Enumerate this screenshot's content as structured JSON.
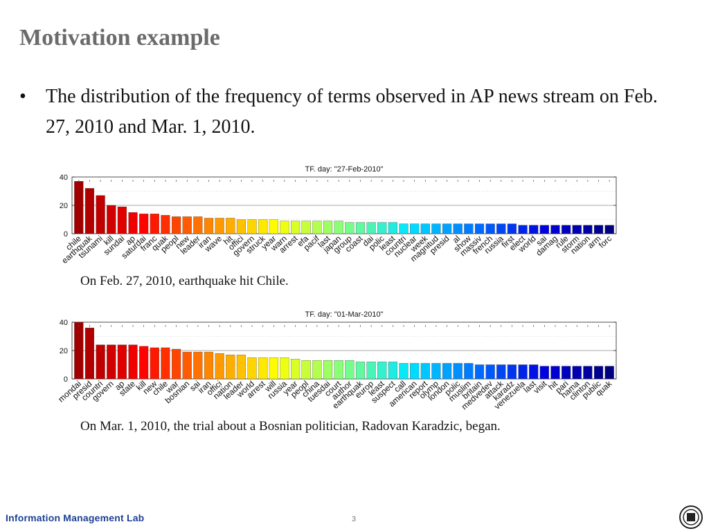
{
  "slide": {
    "title": "Motivation example",
    "bullet": "The distribution of the frequency of terms observed in AP news stream on Feb. 27, 2010 and Mar. 1, 2010.",
    "captions": [
      "On Feb. 27, 2010, earthquake hit Chile.",
      "On Mar. 1, 2010, the trial about a Bosnian politician, Radovan Karadzic, began."
    ],
    "footer": {
      "lab_name": "Information Management Lab",
      "page_number": "3",
      "logo_icon": "university-seal-icon"
    }
  },
  "chart_data": [
    {
      "type": "bar",
      "title": "TF. day: \"27-Feb-2010\"",
      "ylim": [
        0,
        40
      ],
      "yticks": [
        0,
        20,
        40
      ],
      "grid": true,
      "categories": [
        "chile",
        "earthquak",
        "tsunami",
        "kill",
        "sundai",
        "ap",
        "saturdai",
        "franc",
        "quak",
        "peopl",
        "new",
        "leader",
        "iran",
        "wave",
        "hit",
        "offici",
        "govern",
        "struck",
        "year",
        "warn",
        "arrest",
        "efa",
        "pacif",
        "last",
        "japan",
        "group",
        "coast",
        "dai",
        "polic",
        "least",
        "countri",
        "nuclear",
        "week",
        "magnitud",
        "presid",
        "al",
        "show",
        "massiv",
        "french",
        "russia",
        "first",
        "elect",
        "world",
        "sai",
        "damag",
        "rule",
        "storm",
        "nation",
        "arm",
        "forc"
      ],
      "values": [
        37,
        32,
        27,
        20,
        19,
        15,
        14,
        14,
        13,
        12,
        12,
        12,
        11,
        11,
        11,
        10,
        10,
        10,
        10,
        9,
        9,
        9,
        9,
        9,
        9,
        8,
        8,
        8,
        8,
        8,
        7,
        7,
        7,
        7,
        7,
        7,
        7,
        7,
        7,
        7,
        7,
        6,
        6,
        6,
        6,
        6,
        6,
        6,
        6,
        6
      ]
    },
    {
      "type": "bar",
      "title": "TF. day: \"01-Mar-2010\"",
      "ylim": [
        0,
        40
      ],
      "yticks": [
        0,
        20,
        40
      ],
      "grid": true,
      "categories": [
        "mondai",
        "presid",
        "countri",
        "govern",
        "ap",
        "state",
        "kill",
        "new",
        "chile",
        "war",
        "bosnian",
        "sai",
        "iran",
        "offici",
        "nation",
        "leader",
        "world",
        "arrest",
        "will",
        "russia",
        "year",
        "peopl",
        "china",
        "tuesdai",
        "court",
        "author",
        "earthquak",
        "europ",
        "least",
        "suspect",
        "call",
        "american",
        "report",
        "olymp",
        "london",
        "polic",
        "muslim",
        "britain",
        "medvedev",
        "attack",
        "karadz",
        "venezuela",
        "last",
        "visit",
        "hit",
        "pari",
        "hama",
        "clinton",
        "public",
        "quak"
      ],
      "values": [
        40,
        36,
        24,
        24,
        24,
        24,
        23,
        22,
        22,
        21,
        19,
        19,
        19,
        18,
        17,
        17,
        15,
        15,
        15,
        15,
        14,
        13,
        13,
        13,
        13,
        13,
        12,
        12,
        12,
        12,
        11,
        11,
        11,
        11,
        11,
        11,
        11,
        10,
        10,
        10,
        10,
        10,
        10,
        9,
        9,
        9,
        9,
        9,
        9,
        9
      ]
    }
  ]
}
